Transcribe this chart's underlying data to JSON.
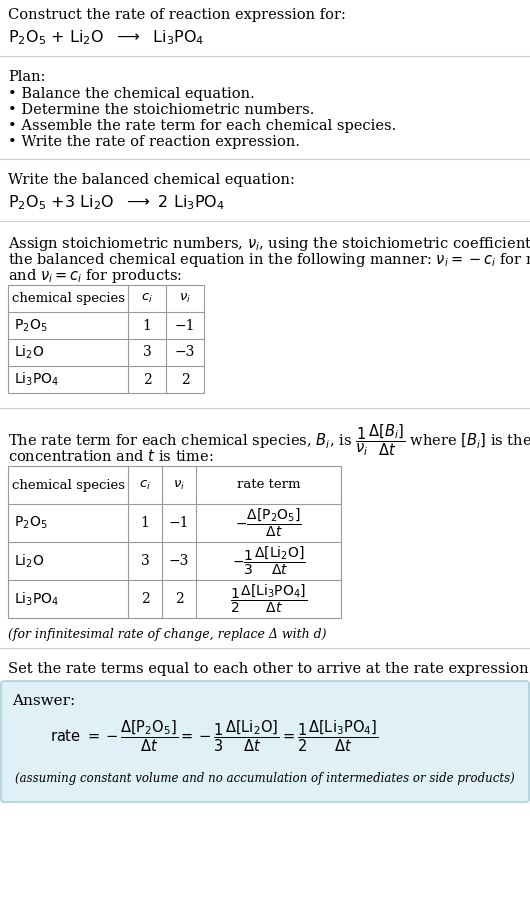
{
  "title": "Construct the rate of reaction expression for:",
  "plan_header": "Plan:",
  "plan_items": [
    "• Balance the chemical equation.",
    "• Determine the stoichiometric numbers.",
    "• Assemble the rate term for each chemical species.",
    "• Write the rate of reaction expression."
  ],
  "balanced_header": "Write the balanced chemical equation:",
  "stoich_line1": "Assign stoichiometric numbers, νᵢ, using the stoichiometric coefficients, cᵢ, from",
  "stoich_line2": "the balanced chemical equation in the following manner: νᵢ = −cᵢ for reactants",
  "stoich_line3": "and νᵢ = cᵢ for products:",
  "table1_rows": [
    [
      "P₂O₅",
      "1",
      "−1"
    ],
    [
      "Li₂O",
      "3",
      "−3"
    ],
    [
      "Li₃PO₄",
      "2",
      "2"
    ]
  ],
  "rate_line1": "The rate term for each chemical species, Bᵢ, is",
  "rate_line2": "where [Bᵢ] is the amount",
  "rate_line3": "concentration and t is time:",
  "table2_rows": [
    [
      "P₂O₅",
      "1",
      "−1"
    ],
    [
      "Li₂O",
      "3",
      "−3"
    ],
    [
      "Li₃PO₄",
      "2",
      "2"
    ]
  ],
  "infinitesimal_note": "(for infinitesimal rate of change, replace Δ with d)",
  "set_rate_header": "Set the rate terms equal to each other to arrive at the rate expression:",
  "answer_label": "Answer:",
  "answer_note": "(assuming constant volume and no accumulation of intermediates or side products)",
  "bg_color": "#ffffff",
  "answer_bg_color": "#dff0f7",
  "table_border_color": "#999999",
  "text_color": "#000000",
  "answer_border_color": "#aacfe0",
  "divider_color": "#cccccc"
}
